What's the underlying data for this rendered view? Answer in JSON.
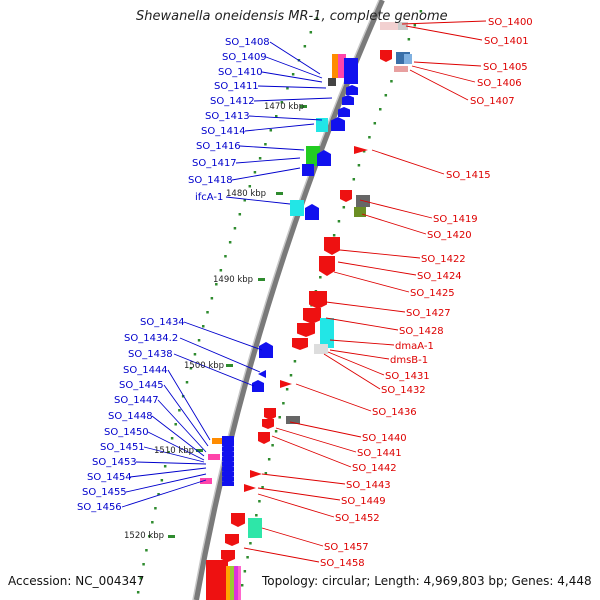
{
  "title": "Shewanella oneidensis MR-1, complete genome",
  "footer": {
    "accession": "Accession: NC_004347",
    "topology": "Topology: circular; Length: 4,969,803 bp; Genes: 4,448"
  },
  "colors": {
    "plus_label": "#0000cc",
    "minus_label": "#dd0000",
    "plus_gene": "#0000ee",
    "minus_gene": "#ee0000",
    "backbone": "#777777"
  },
  "ticks": [
    "1470 kbp",
    "1480 kbp",
    "1490 kbp",
    "1500 kbp",
    "1510 kbp",
    "1520 kbp"
  ],
  "plus_labels": [
    "SO_1408",
    "SO_1409",
    "SO_1410",
    "SO_1411",
    "SO_1412",
    "SO_1413",
    "SO_1414",
    "SO_1416",
    "SO_1417",
    "SO_1418",
    "ifcA-1",
    "SO_1434",
    "SO_1434.2",
    "SO_1438",
    "SO_1444",
    "SO_1445",
    "SO_1447",
    "SO_1448",
    "SO_1450",
    "SO_1451",
    "SO_1453",
    "SO_1454",
    "SO_1455",
    "SO_1456"
  ],
  "minus_labels": [
    "SO_1400",
    "SO_1401",
    "SO_1405",
    "SO_1406",
    "SO_1407",
    "SO_1415",
    "SO_1419",
    "SO_1420",
    "SO_1422",
    "SO_1424",
    "SO_1425",
    "SO_1427",
    "SO_1428",
    "dmaA-1",
    "dmsB-1",
    "SO_1431",
    "SO_1432",
    "SO_1436",
    "SO_1440",
    "SO_1441",
    "SO_1442",
    "SO_1443",
    "SO_1449",
    "SO_1452",
    "SO_1457",
    "SO_1458"
  ]
}
